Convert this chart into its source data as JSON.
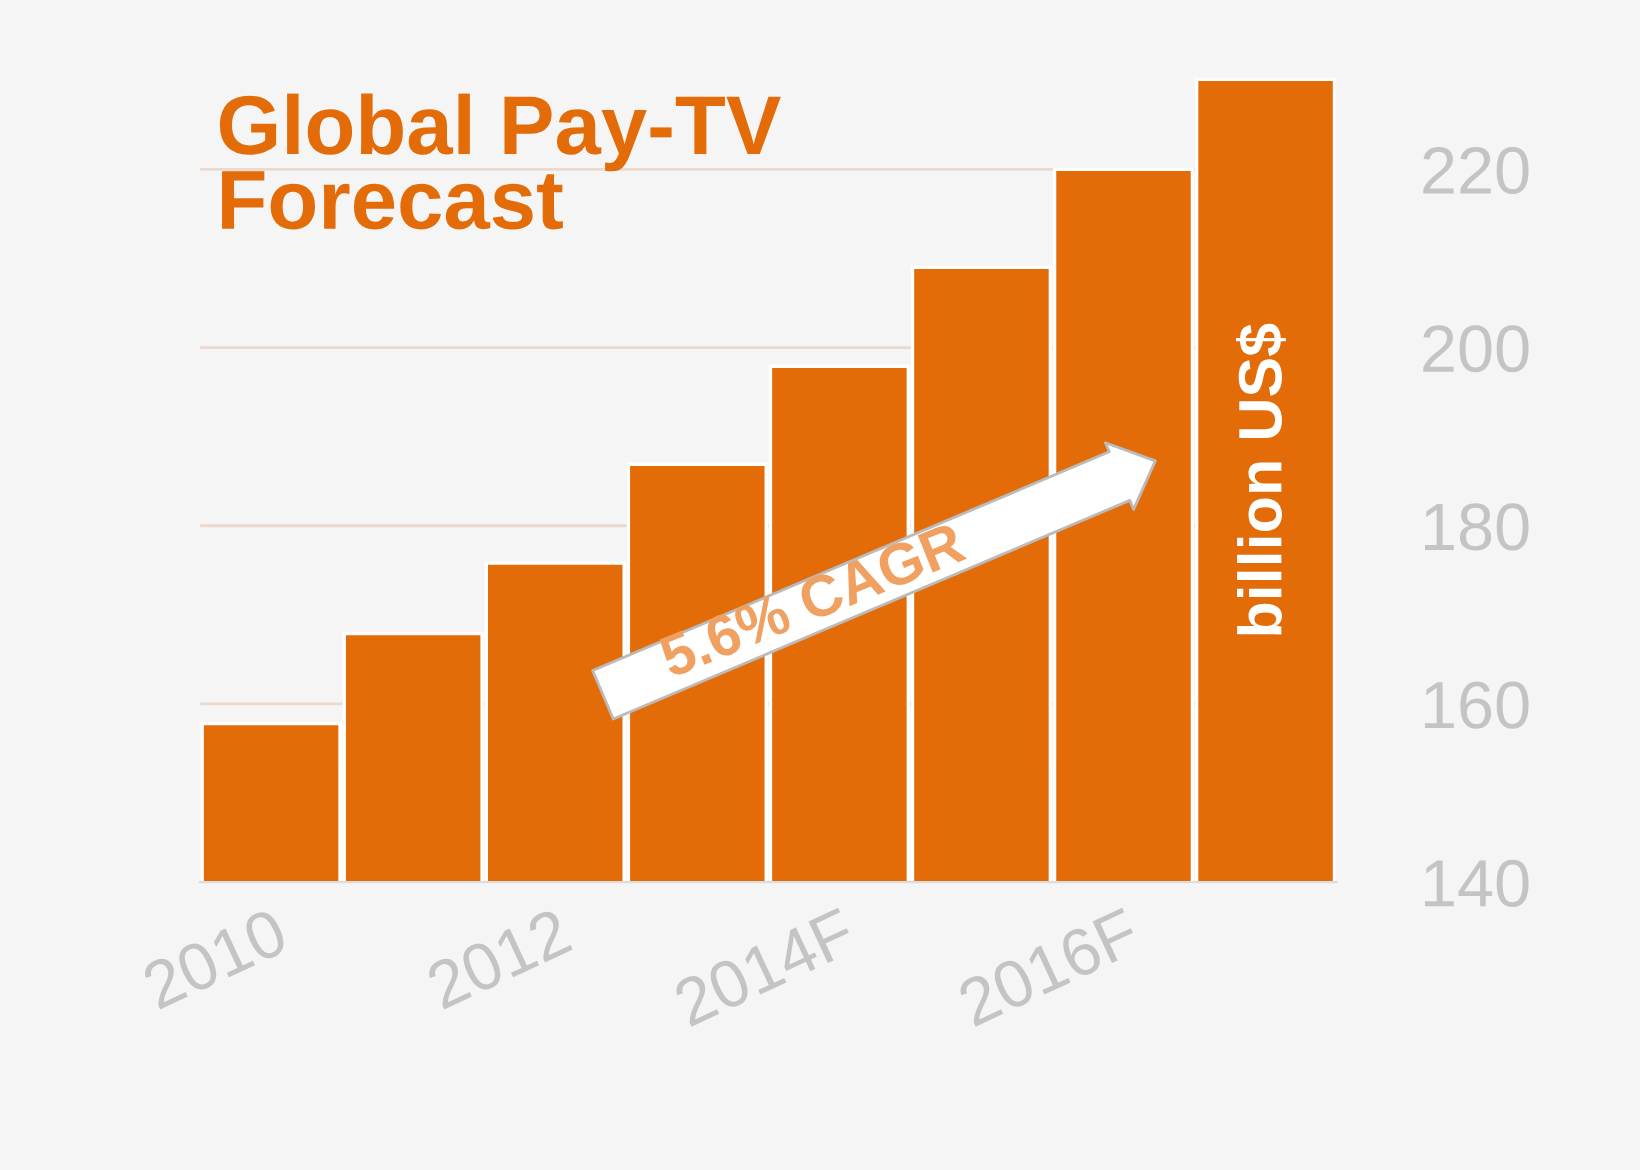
{
  "chart_data": {
    "type": "bar",
    "title": "Global Pay-TV\nForecast",
    "ylabel": "billion US$",
    "annotations": [
      "5.6% CAGR"
    ],
    "categories": [
      "2010",
      null,
      "2012",
      null,
      "2014F",
      null,
      "2016F",
      null
    ],
    "values": [
      157.8,
      167.9,
      175.8,
      186.9,
      197.9,
      209,
      220,
      230.1
    ],
    "color": "#e36c09",
    "ylim": [
      140,
      239
    ],
    "yticks": [
      140,
      160,
      180,
      200,
      220
    ],
    "grid": "y"
  }
}
